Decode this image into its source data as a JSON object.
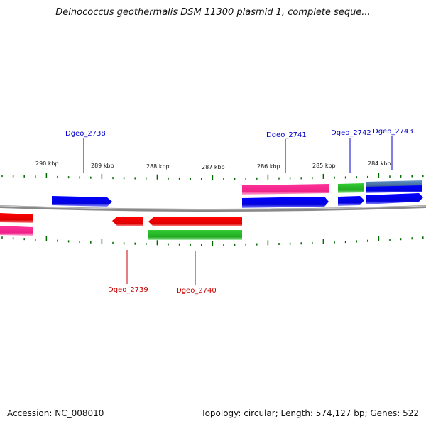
{
  "title": "Deinococcus geothermalis DSM 11300 plasmid 1, complete seque...",
  "footer": {
    "accession": "Accession: NC_008010",
    "topology": "Topology: circular; Length: 574,127 bp; Genes: 522"
  },
  "colors": {
    "forward_label": "#0000cc",
    "reverse_label": "#cc0000",
    "tick": "#006600",
    "backbone": "#888888",
    "cds_blue": "#0000ee",
    "cds_red": "#ee0000",
    "cds_green": "#22bb22",
    "cds_magenta": "#ee2288",
    "cds_steel": "#4477aa"
  },
  "scale": {
    "unit": "kbp",
    "labels": [
      {
        "text": "290 kbp",
        "kbp": 290
      },
      {
        "text": "289 kbp",
        "kbp": 289
      },
      {
        "text": "288 kbp",
        "kbp": 288
      },
      {
        "text": "287 kbp",
        "kbp": 287
      },
      {
        "text": "286 kbp",
        "kbp": 286
      },
      {
        "text": "285 kbp",
        "kbp": 285
      },
      {
        "text": "284 kbp",
        "kbp": 284
      }
    ]
  },
  "gene_labels": [
    {
      "name": "Dgeo_2738",
      "strand": "forward"
    },
    {
      "name": "Dgeo_2741",
      "strand": "forward"
    },
    {
      "name": "Dgeo_2742",
      "strand": "forward"
    },
    {
      "name": "Dgeo_2743",
      "strand": "forward"
    },
    {
      "name": "Dgeo_2739",
      "strand": "reverse"
    },
    {
      "name": "Dgeo_2740",
      "strand": "reverse"
    }
  ]
}
